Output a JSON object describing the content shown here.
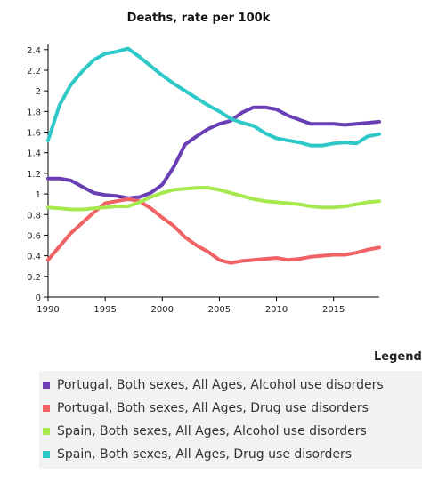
{
  "chart_data": {
    "type": "line",
    "title": "Deaths, rate per 100k",
    "xlabel": "",
    "ylabel": "",
    "xlim": [
      1990,
      2019
    ],
    "ylim": [
      0,
      2.45
    ],
    "x_ticks": [
      1990,
      1995,
      2000,
      2005,
      2010,
      2015
    ],
    "y_ticks": [
      "0",
      "0.2",
      "0.4",
      "0.6",
      "0.8",
      "1",
      "1.2",
      "1.4",
      "1.6",
      "1.8",
      "2",
      "2.2",
      "2.4"
    ],
    "x": [
      1990,
      1991,
      1992,
      1993,
      1994,
      1995,
      1996,
      1997,
      1998,
      1999,
      2000,
      2001,
      2002,
      2003,
      2004,
      2005,
      2006,
      2007,
      2008,
      2009,
      2010,
      2011,
      2012,
      2013,
      2014,
      2015,
      2016,
      2017,
      2018,
      2019
    ],
    "series": [
      {
        "name": "Portugal, Both sexes, All Ages, Alcohol use disorders",
        "color": "#6a3fb5",
        "values": [
          1.15,
          1.15,
          1.13,
          1.07,
          1.01,
          0.99,
          0.98,
          0.96,
          0.97,
          1.01,
          1.09,
          1.26,
          1.48,
          1.56,
          1.63,
          1.68,
          1.71,
          1.79,
          1.84,
          1.84,
          1.82,
          1.76,
          1.72,
          1.68,
          1.68,
          1.68,
          1.67,
          1.68,
          1.69,
          1.7
        ]
      },
      {
        "name": "Portugal, Both sexes, All Ages, Drug use disorders",
        "color": "#f06264",
        "values": [
          0.36,
          0.49,
          0.62,
          0.72,
          0.82,
          0.91,
          0.93,
          0.95,
          0.93,
          0.86,
          0.77,
          0.69,
          0.58,
          0.5,
          0.44,
          0.36,
          0.33,
          0.35,
          0.36,
          0.37,
          0.38,
          0.36,
          0.37,
          0.39,
          0.4,
          0.41,
          0.41,
          0.43,
          0.46,
          0.48
        ]
      },
      {
        "name": "Spain, Both sexes, All Ages, Alcohol use disorders",
        "color": "#a6e94e",
        "values": [
          0.87,
          0.86,
          0.85,
          0.85,
          0.86,
          0.87,
          0.88,
          0.88,
          0.92,
          0.97,
          1.01,
          1.04,
          1.05,
          1.06,
          1.06,
          1.04,
          1.01,
          0.98,
          0.95,
          0.93,
          0.92,
          0.91,
          0.9,
          0.88,
          0.87,
          0.87,
          0.88,
          0.9,
          0.92,
          0.93
        ]
      },
      {
        "name": "Spain, Both sexes, All Ages, Drug use disorders",
        "color": "#2ec8c8",
        "values": [
          1.52,
          1.86,
          2.06,
          2.19,
          2.3,
          2.36,
          2.38,
          2.41,
          2.33,
          2.24,
          2.15,
          2.07,
          2.0,
          1.93,
          1.86,
          1.8,
          1.73,
          1.69,
          1.66,
          1.59,
          1.54,
          1.52,
          1.5,
          1.47,
          1.47,
          1.49,
          1.5,
          1.49,
          1.56,
          1.58
        ]
      }
    ]
  },
  "legend": {
    "heading": "Legend",
    "items": [
      "Portugal, Both sexes, All Ages, Alcohol use disorders",
      "Portugal, Both sexes, All Ages, Drug use disorders",
      "Spain, Both sexes, All Ages, Alcohol use disorders",
      "Spain, Both sexes, All Ages, Drug use disorders"
    ]
  }
}
